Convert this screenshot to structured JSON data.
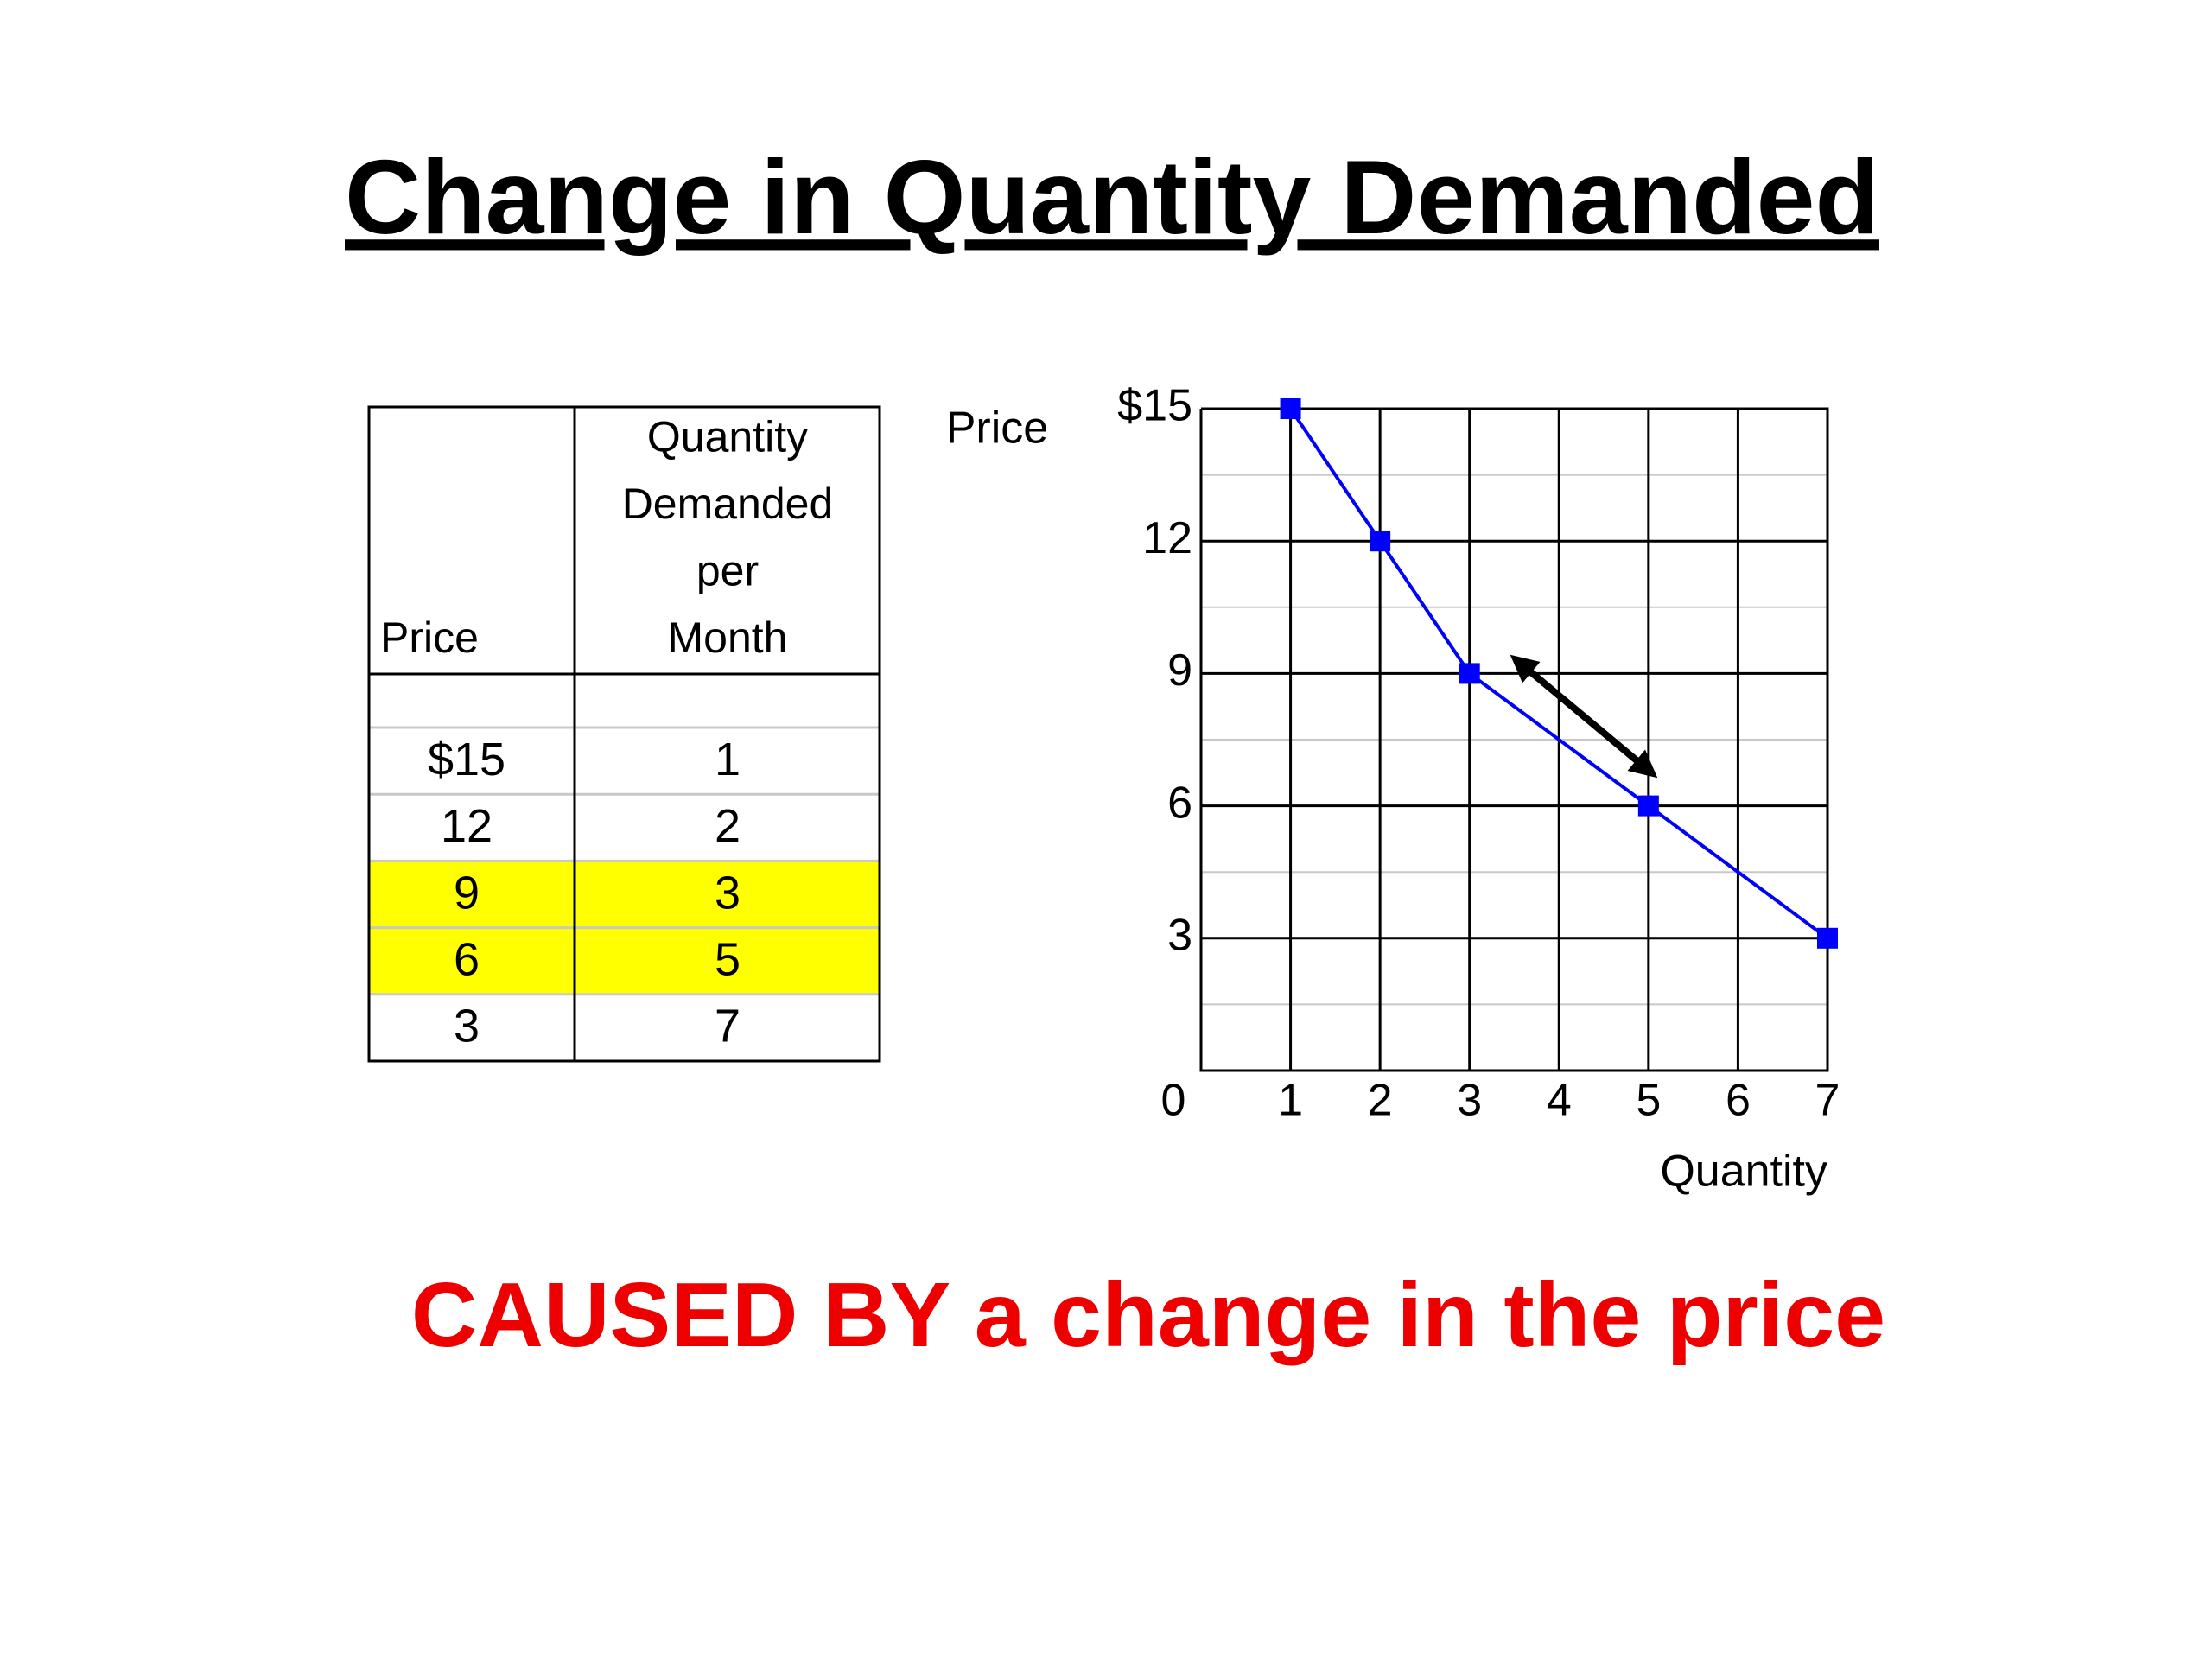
{
  "title": "Change in Quantity Demanded",
  "table": {
    "header": [
      "Price",
      "Quantity Demanded per Month"
    ],
    "rows": [
      [
        "$15",
        "1"
      ],
      [
        "12",
        "2"
      ],
      [
        "9",
        "3"
      ],
      [
        "6",
        "5"
      ],
      [
        "3",
        "7"
      ]
    ],
    "highlight_rows": [
      2,
      3
    ],
    "highlight_color": "#ffff00"
  },
  "chart_data": {
    "type": "line",
    "x": [
      1,
      2,
      3,
      5,
      7
    ],
    "series": [
      {
        "color": "#0000ff",
        "values": [
          15,
          12,
          9,
          6,
          3
        ]
      }
    ],
    "xlim": [
      0,
      7
    ],
    "ylim": [
      0,
      15
    ],
    "xticks": [
      0,
      1,
      2,
      3,
      4,
      5,
      6,
      7
    ],
    "yticks": [
      {
        "value": 15,
        "label": "$15"
      },
      12,
      9,
      6,
      3
    ],
    "x_label": "Quantity",
    "y_label": "Price",
    "grid": true
  },
  "caption": "CAUSED BY a change in the price"
}
